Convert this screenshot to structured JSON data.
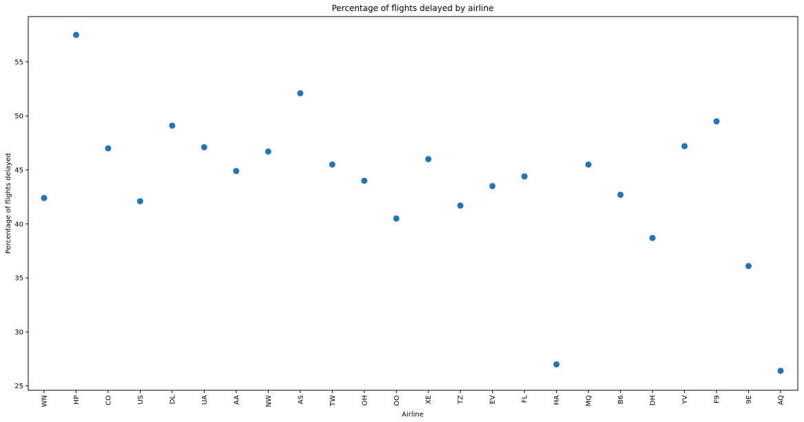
{
  "chart_data": {
    "type": "scatter",
    "title": "Percentage of flights delayed by airline",
    "xlabel": "Airline",
    "ylabel": "Percentage of flights delayed",
    "categories": [
      "WN",
      "HP",
      "CO",
      "US",
      "DL",
      "UA",
      "AA",
      "NW",
      "AS",
      "TW",
      "OH",
      "OO",
      "XE",
      "TZ",
      "EV",
      "FL",
      "HA",
      "MQ",
      "B6",
      "DH",
      "YV",
      "F9",
      "9E",
      "AQ"
    ],
    "values": [
      42.4,
      57.5,
      47.0,
      42.1,
      49.1,
      47.1,
      44.9,
      46.7,
      52.1,
      45.5,
      44.0,
      40.5,
      46.0,
      41.7,
      43.5,
      44.4,
      27.0,
      45.5,
      42.7,
      38.7,
      47.2,
      49.5,
      36.1,
      26.4
    ],
    "ylim": [
      24.6,
      59.2
    ],
    "yticks": [
      25,
      30,
      35,
      40,
      45,
      50,
      55
    ],
    "grid": false,
    "marker_color": "#1f77b4"
  }
}
